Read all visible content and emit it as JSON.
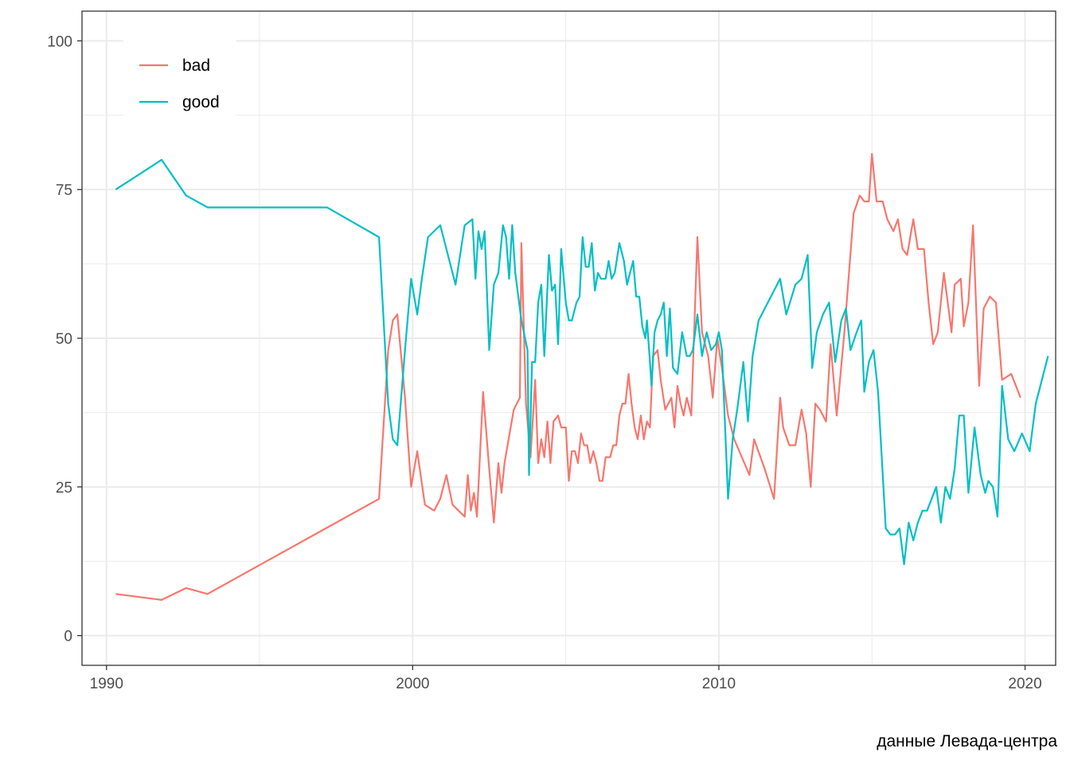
{
  "chart_data": {
    "type": "line",
    "title": "",
    "xlabel": "",
    "ylabel": "",
    "caption": "данные Левада-центра",
    "xlim": [
      1989.2,
      2021.0
    ],
    "ylim": [
      -5,
      105
    ],
    "x_ticks": [
      1990,
      2000,
      2010,
      2020
    ],
    "y_ticks": [
      0,
      25,
      50,
      75,
      100
    ],
    "grid": true,
    "legend_position": "top-left",
    "series": [
      {
        "name": "bad",
        "color": "#F8766D",
        "points": [
          [
            1990.3,
            7
          ],
          [
            1991.8,
            6
          ],
          [
            1992.6,
            8
          ],
          [
            1993.3,
            7
          ],
          [
            1998.9,
            23
          ],
          [
            1999.2,
            48
          ],
          [
            1999.35,
            53
          ],
          [
            1999.5,
            54
          ],
          [
            1999.75,
            40
          ],
          [
            1999.95,
            25
          ],
          [
            2000.15,
            31
          ],
          [
            2000.4,
            22
          ],
          [
            2000.7,
            21
          ],
          [
            2000.9,
            23
          ],
          [
            2001.1,
            27
          ],
          [
            2001.3,
            22
          ],
          [
            2001.7,
            20
          ],
          [
            2001.8,
            27
          ],
          [
            2001.9,
            21
          ],
          [
            2002.0,
            24
          ],
          [
            2002.1,
            20
          ],
          [
            2002.3,
            41
          ],
          [
            2002.5,
            28
          ],
          [
            2002.65,
            19
          ],
          [
            2002.8,
            29
          ],
          [
            2002.9,
            24
          ],
          [
            2003.0,
            29
          ],
          [
            2003.3,
            38
          ],
          [
            2003.5,
            40
          ],
          [
            2003.55,
            66
          ],
          [
            2003.7,
            39
          ],
          [
            2003.85,
            30
          ],
          [
            2004.0,
            43
          ],
          [
            2004.1,
            29
          ],
          [
            2004.2,
            33
          ],
          [
            2004.3,
            30
          ],
          [
            2004.4,
            36
          ],
          [
            2004.5,
            29
          ],
          [
            2004.6,
            36
          ],
          [
            2004.75,
            37
          ],
          [
            2004.85,
            35
          ],
          [
            2005.0,
            35
          ],
          [
            2005.1,
            26
          ],
          [
            2005.2,
            31
          ],
          [
            2005.3,
            31
          ],
          [
            2005.4,
            29
          ],
          [
            2005.5,
            34
          ],
          [
            2005.6,
            32
          ],
          [
            2005.7,
            32
          ],
          [
            2005.8,
            29
          ],
          [
            2005.9,
            31
          ],
          [
            2006.0,
            29
          ],
          [
            2006.1,
            26
          ],
          [
            2006.2,
            26
          ],
          [
            2006.3,
            30
          ],
          [
            2006.45,
            30
          ],
          [
            2006.55,
            32
          ],
          [
            2006.65,
            32
          ],
          [
            2006.75,
            37
          ],
          [
            2006.85,
            39
          ],
          [
            2006.95,
            39
          ],
          [
            2007.05,
            44
          ],
          [
            2007.15,
            39
          ],
          [
            2007.25,
            35
          ],
          [
            2007.35,
            33
          ],
          [
            2007.45,
            37
          ],
          [
            2007.55,
            33
          ],
          [
            2007.65,
            36
          ],
          [
            2007.75,
            35
          ],
          [
            2007.85,
            47
          ],
          [
            2008.0,
            48
          ],
          [
            2008.1,
            43
          ],
          [
            2008.25,
            38
          ],
          [
            2008.45,
            40
          ],
          [
            2008.55,
            35
          ],
          [
            2008.65,
            42
          ],
          [
            2008.75,
            39
          ],
          [
            2008.85,
            37
          ],
          [
            2008.95,
            40
          ],
          [
            2009.1,
            37
          ],
          [
            2009.3,
            67
          ],
          [
            2009.45,
            51
          ],
          [
            2009.55,
            49
          ],
          [
            2009.65,
            47
          ],
          [
            2009.8,
            40
          ],
          [
            2009.95,
            50
          ],
          [
            2010.1,
            45
          ],
          [
            2010.3,
            37
          ],
          [
            2010.5,
            33
          ],
          [
            2011.0,
            27
          ],
          [
            2011.15,
            33
          ],
          [
            2011.5,
            28
          ],
          [
            2011.8,
            23
          ],
          [
            2012.0,
            40
          ],
          [
            2012.1,
            35
          ],
          [
            2012.3,
            32
          ],
          [
            2012.5,
            32
          ],
          [
            2012.7,
            38
          ],
          [
            2012.85,
            34
          ],
          [
            2013.0,
            25
          ],
          [
            2013.15,
            39
          ],
          [
            2013.3,
            38
          ],
          [
            2013.5,
            36
          ],
          [
            2013.65,
            49
          ],
          [
            2013.85,
            37
          ],
          [
            2014.1,
            51
          ],
          [
            2014.4,
            71
          ],
          [
            2014.6,
            74
          ],
          [
            2014.75,
            73
          ],
          [
            2014.9,
            73
          ],
          [
            2015.0,
            81
          ],
          [
            2015.15,
            73
          ],
          [
            2015.35,
            73
          ],
          [
            2015.5,
            70
          ],
          [
            2015.7,
            68
          ],
          [
            2015.85,
            70
          ],
          [
            2016.0,
            65
          ],
          [
            2016.15,
            64
          ],
          [
            2016.35,
            70
          ],
          [
            2016.5,
            65
          ],
          [
            2016.7,
            65
          ],
          [
            2016.85,
            56
          ],
          [
            2017.0,
            49
          ],
          [
            2017.15,
            51
          ],
          [
            2017.35,
            61
          ],
          [
            2017.5,
            55
          ],
          [
            2017.6,
            51
          ],
          [
            2017.7,
            59
          ],
          [
            2017.9,
            60
          ],
          [
            2018.0,
            52
          ],
          [
            2018.15,
            56
          ],
          [
            2018.3,
            69
          ],
          [
            2018.5,
            42
          ],
          [
            2018.65,
            55
          ],
          [
            2018.85,
            57
          ],
          [
            2019.05,
            56
          ],
          [
            2019.25,
            43
          ],
          [
            2019.55,
            44
          ],
          [
            2019.85,
            40
          ]
        ]
      },
      {
        "name": "good",
        "color": "#00BFC4",
        "points": [
          [
            1990.3,
            75
          ],
          [
            1991.8,
            80
          ],
          [
            1992.6,
            74
          ],
          [
            1993.3,
            72
          ],
          [
            1997.2,
            72
          ],
          [
            1998.9,
            67
          ],
          [
            1999.2,
            39
          ],
          [
            1999.35,
            33
          ],
          [
            1999.5,
            32
          ],
          [
            1999.75,
            48
          ],
          [
            1999.95,
            60
          ],
          [
            2000.15,
            54
          ],
          [
            2000.3,
            60
          ],
          [
            2000.5,
            67
          ],
          [
            2000.7,
            68
          ],
          [
            2000.9,
            69
          ],
          [
            2001.1,
            65
          ],
          [
            2001.4,
            59
          ],
          [
            2001.7,
            69
          ],
          [
            2001.95,
            70
          ],
          [
            2002.05,
            60
          ],
          [
            2002.15,
            68
          ],
          [
            2002.25,
            65
          ],
          [
            2002.35,
            68
          ],
          [
            2002.5,
            48
          ],
          [
            2002.65,
            59
          ],
          [
            2002.8,
            61
          ],
          [
            2002.95,
            69
          ],
          [
            2003.05,
            67
          ],
          [
            2003.15,
            60
          ],
          [
            2003.25,
            69
          ],
          [
            2003.35,
            61
          ],
          [
            2003.55,
            53
          ],
          [
            2003.75,
            48
          ],
          [
            2003.8,
            27
          ],
          [
            2003.9,
            46
          ],
          [
            2004.0,
            46
          ],
          [
            2004.1,
            56
          ],
          [
            2004.2,
            59
          ],
          [
            2004.3,
            47
          ],
          [
            2004.45,
            64
          ],
          [
            2004.55,
            58
          ],
          [
            2004.65,
            59
          ],
          [
            2004.75,
            49
          ],
          [
            2004.85,
            65
          ],
          [
            2005.0,
            56
          ],
          [
            2005.1,
            53
          ],
          [
            2005.2,
            53
          ],
          [
            2005.35,
            56
          ],
          [
            2005.45,
            57
          ],
          [
            2005.55,
            67
          ],
          [
            2005.65,
            62
          ],
          [
            2005.75,
            62
          ],
          [
            2005.85,
            66
          ],
          [
            2005.95,
            58
          ],
          [
            2006.05,
            61
          ],
          [
            2006.15,
            60
          ],
          [
            2006.3,
            60
          ],
          [
            2006.4,
            63
          ],
          [
            2006.5,
            60
          ],
          [
            2006.6,
            61
          ],
          [
            2006.75,
            66
          ],
          [
            2006.9,
            63
          ],
          [
            2007.0,
            59
          ],
          [
            2007.1,
            61
          ],
          [
            2007.2,
            63
          ],
          [
            2007.3,
            57
          ],
          [
            2007.4,
            57
          ],
          [
            2007.5,
            52
          ],
          [
            2007.6,
            50
          ],
          [
            2007.65,
            53
          ],
          [
            2007.75,
            46
          ],
          [
            2007.8,
            42
          ],
          [
            2007.9,
            51
          ],
          [
            2008.0,
            53
          ],
          [
            2008.1,
            54
          ],
          [
            2008.2,
            56
          ],
          [
            2008.3,
            47
          ],
          [
            2008.4,
            55
          ],
          [
            2008.5,
            45
          ],
          [
            2008.65,
            44
          ],
          [
            2008.8,
            51
          ],
          [
            2008.95,
            47
          ],
          [
            2009.05,
            47
          ],
          [
            2009.15,
            48
          ],
          [
            2009.3,
            54
          ],
          [
            2009.45,
            47
          ],
          [
            2009.6,
            51
          ],
          [
            2009.75,
            48
          ],
          [
            2009.9,
            49
          ],
          [
            2010.0,
            51
          ],
          [
            2010.1,
            48
          ],
          [
            2010.3,
            23
          ],
          [
            2010.45,
            33
          ],
          [
            2010.6,
            38
          ],
          [
            2010.8,
            46
          ],
          [
            2010.95,
            36
          ],
          [
            2011.1,
            47
          ],
          [
            2011.3,
            53
          ],
          [
            2011.5,
            55
          ],
          [
            2012.0,
            60
          ],
          [
            2012.2,
            54
          ],
          [
            2012.5,
            59
          ],
          [
            2012.7,
            60
          ],
          [
            2012.9,
            64
          ],
          [
            2013.05,
            45
          ],
          [
            2013.2,
            51
          ],
          [
            2013.4,
            54
          ],
          [
            2013.6,
            56
          ],
          [
            2013.8,
            46
          ],
          [
            2014.0,
            53
          ],
          [
            2014.15,
            55
          ],
          [
            2014.3,
            48
          ],
          [
            2014.5,
            51
          ],
          [
            2014.65,
            53
          ],
          [
            2014.75,
            41
          ],
          [
            2014.9,
            46
          ],
          [
            2015.05,
            48
          ],
          [
            2015.2,
            41
          ],
          [
            2015.45,
            18
          ],
          [
            2015.6,
            17
          ],
          [
            2015.75,
            17
          ],
          [
            2015.9,
            18
          ],
          [
            2016.05,
            12
          ],
          [
            2016.2,
            19
          ],
          [
            2016.35,
            16
          ],
          [
            2016.5,
            19
          ],
          [
            2016.65,
            21
          ],
          [
            2016.8,
            21
          ],
          [
            2016.95,
            23
          ],
          [
            2017.1,
            25
          ],
          [
            2017.25,
            19
          ],
          [
            2017.4,
            25
          ],
          [
            2017.55,
            23
          ],
          [
            2017.7,
            28
          ],
          [
            2017.85,
            37
          ],
          [
            2018.0,
            37
          ],
          [
            2018.15,
            24
          ],
          [
            2018.35,
            35
          ],
          [
            2018.55,
            27
          ],
          [
            2018.7,
            24
          ],
          [
            2018.8,
            26
          ],
          [
            2018.95,
            25
          ],
          [
            2019.1,
            20
          ],
          [
            2019.25,
            42
          ],
          [
            2019.45,
            33
          ],
          [
            2019.65,
            31
          ],
          [
            2019.9,
            34
          ],
          [
            2020.15,
            31
          ],
          [
            2020.35,
            39
          ],
          [
            2020.55,
            43
          ],
          [
            2020.75,
            47
          ]
        ]
      }
    ]
  }
}
